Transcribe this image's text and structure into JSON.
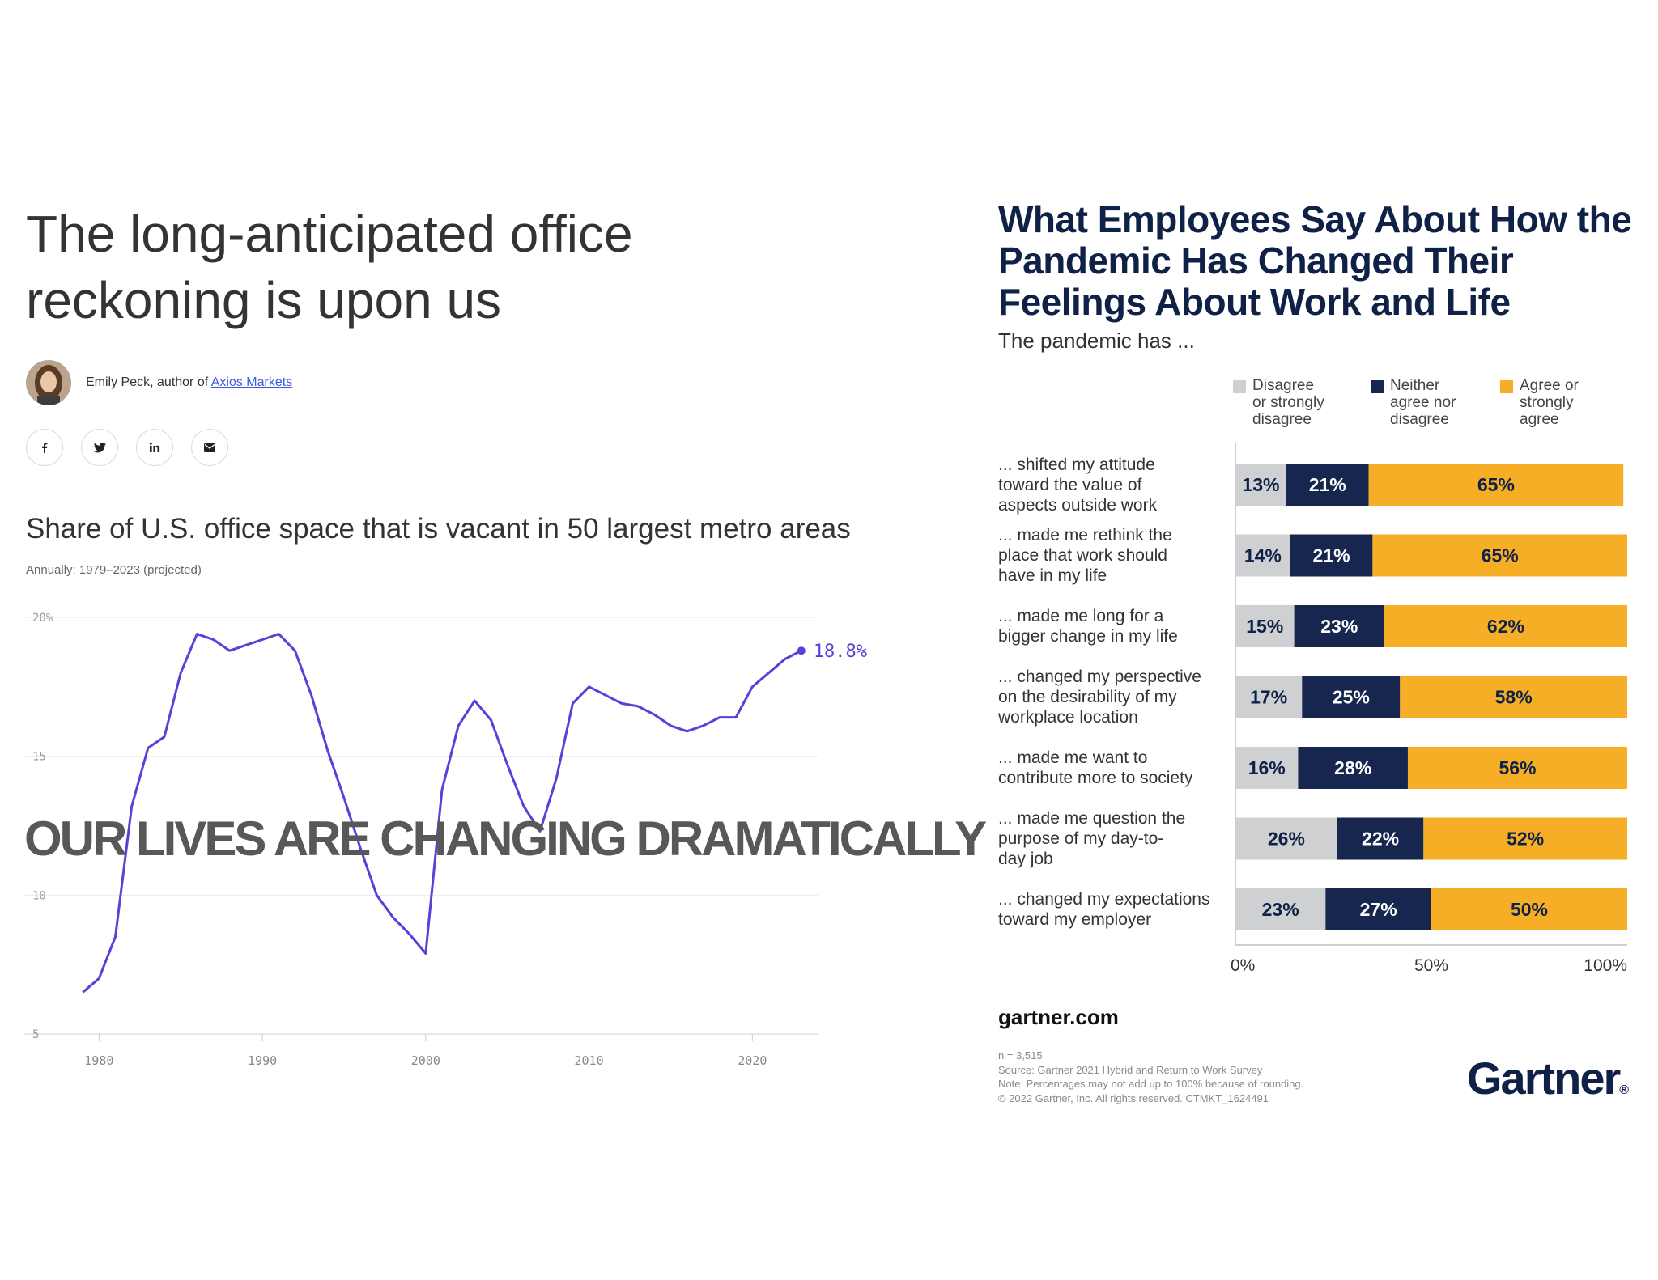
{
  "article": {
    "title_line1": "The long-anticipated office",
    "title_line2": "reckoning is upon us",
    "author_prefix": "Emily Peck, author of ",
    "author_link": "Axios Markets",
    "social_icons": [
      "facebook-icon",
      "twitter-icon",
      "linkedin-icon",
      "email-icon"
    ]
  },
  "overlay_text": "OUR LIVES ARE CHANGING DRAMATICALLY",
  "chart_data": [
    {
      "type": "line",
      "title": "Share of U.S. office space that is vacant in 50 largest metro areas",
      "subtitle": "Annually; 1979–2023 (projected)",
      "line_color": "#5b3fd8",
      "ylim": [
        5,
        20
      ],
      "y_ticks": [
        "20%",
        "15",
        "10",
        "5"
      ],
      "y_tick_values": [
        20,
        15,
        10,
        5
      ],
      "x_ticks": [
        "1980",
        "1990",
        "2000",
        "2010",
        "2020"
      ],
      "x_tick_values": [
        1980,
        1990,
        2000,
        2010,
        2020
      ],
      "end_label": "18.8%",
      "x": [
        1979,
        1980,
        1981,
        1982,
        1983,
        1984,
        1985,
        1986,
        1987,
        1988,
        1989,
        1990,
        1991,
        1992,
        1993,
        1994,
        1995,
        1996,
        1997,
        1998,
        1999,
        2000,
        2001,
        2002,
        2003,
        2004,
        2005,
        2006,
        2007,
        2008,
        2009,
        2010,
        2011,
        2012,
        2013,
        2014,
        2015,
        2016,
        2017,
        2018,
        2019,
        2020,
        2021,
        2022,
        2023
      ],
      "y": [
        6.5,
        7.0,
        8.5,
        13.2,
        15.3,
        15.7,
        18.0,
        19.4,
        19.2,
        18.8,
        19.0,
        19.2,
        19.4,
        18.8,
        17.2,
        15.2,
        13.5,
        11.7,
        10.0,
        9.2,
        8.6,
        7.9,
        13.8,
        16.1,
        17.0,
        16.3,
        14.7,
        13.2,
        12.3,
        14.2,
        16.9,
        17.5,
        17.2,
        16.9,
        16.8,
        16.5,
        16.1,
        15.9,
        16.1,
        16.4,
        16.4,
        17.5,
        18.0,
        18.5,
        18.8
      ]
    },
    {
      "type": "bar",
      "stacked": true,
      "orientation": "horizontal",
      "title": "What Employees Say About How the Pandemic Has Changed Their Feelings About Work and Life",
      "subtitle": "The pandemic has ...",
      "categories": [
        "... shifted my attitude toward the value of aspects outside work",
        "... made me rethink the place that work should have in my life",
        "... made me long for a bigger change in my life",
        "... changed my perspective on the desirability of my workplace location",
        "... made me want to contribute more to society",
        "... made me question the purpose of my day-to-day job",
        "... changed my expectations toward my employer"
      ],
      "category_lines": [
        [
          "... shifted my attitude",
          "toward the value of",
          "aspects outside work"
        ],
        [
          "... made me rethink the",
          "place that work should",
          "have in my life"
        ],
        [
          "... made me long for a",
          "bigger change in my life"
        ],
        [
          "... changed my perspective",
          "on the desirability of my",
          "workplace location"
        ],
        [
          "... made me want to",
          "contribute more to society"
        ],
        [
          "... made me question the",
          "purpose of my day-to-",
          "day job"
        ],
        [
          "... changed my expectations",
          "toward my employer"
        ]
      ],
      "series": [
        {
          "name": "Disagree or strongly disagree",
          "name_lines": [
            "Disagree",
            "or strongly",
            "disagree"
          ],
          "color": "#cfd0d1",
          "values": [
            13,
            14,
            15,
            17,
            16,
            26,
            23
          ]
        },
        {
          "name": "Neither agree nor disagree",
          "name_lines": [
            "Neither",
            "agree nor",
            "disagree"
          ],
          "color": "#16264f",
          "values": [
            21,
            21,
            23,
            25,
            28,
            22,
            27
          ]
        },
        {
          "name": "Agree or strongly agree",
          "name_lines": [
            "Agree or",
            "strongly",
            "agree"
          ],
          "color": "#f5ae26",
          "values": [
            65,
            65,
            62,
            58,
            56,
            52,
            50
          ]
        }
      ],
      "x_ticks": [
        "0%",
        "50%",
        "100%"
      ],
      "xlim": [
        0,
        100
      ]
    }
  ],
  "gartner": {
    "url": "gartner.com",
    "footnote_n": "n = 3,515",
    "footnote_source": "Source: Gartner 2021 Hybrid and Return to Work Survey",
    "footnote_note": "Note: Percentages may not add up to 100% because of rounding.",
    "footnote_copyright": "© 2022 Gartner, Inc. All rights reserved. CTMKT_1624491",
    "logo": "Gartner",
    "logo_mark": "®"
  }
}
